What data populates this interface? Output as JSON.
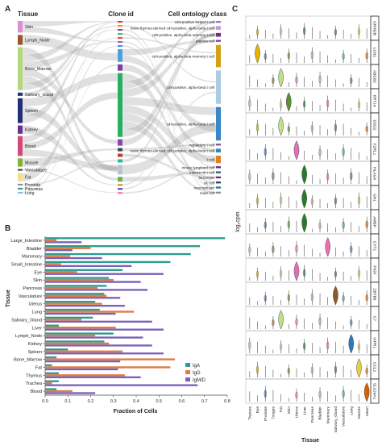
{
  "panels": [
    {
      "label": "A",
      "col_titles": [
        "Tissue",
        "Clone id",
        "Cell ontology class"
      ]
    },
    {
      "label": "B"
    },
    {
      "label": "C"
    }
  ],
  "chart_data": [
    {
      "type": "sankey",
      "panel": "A",
      "titles": [
        "Tissue",
        "Clone id",
        "Cell ontology class"
      ],
      "left_nodes": [
        {
          "name": "Skin",
          "color": "#d98fd6",
          "weight": 0.07
        },
        {
          "name": "Lymph_Node",
          "color": "#a0522d",
          "weight": 0.06
        },
        {
          "name": "Bone_Marrow",
          "color": "#b3d77a",
          "weight": 0.26
        },
        {
          "name": "Salivary_Gland",
          "color": "#2c2f80",
          "weight": 0.02
        },
        {
          "name": "Spleen",
          "color": "#1f2f7a",
          "weight": 0.15
        },
        {
          "name": "Kidney",
          "color": "#6b2f8c",
          "weight": 0.05
        },
        {
          "name": "Blood",
          "color": "#d1497a",
          "weight": 0.12
        },
        {
          "name": "Muscle",
          "color": "#7fb13c",
          "weight": 0.05
        },
        {
          "name": "Vasculature",
          "color": "#3f3f3f",
          "weight": 0.01
        },
        {
          "name": "Fat",
          "color": "#f1e08a",
          "weight": 0.05
        },
        {
          "name": "Prostate",
          "color": "#9a7fb6",
          "weight": 0.01
        },
        {
          "name": "Pancreas",
          "color": "#2a9d8f",
          "weight": 0.01
        },
        {
          "name": "Lung",
          "color": "#8fb8de",
          "weight": 0.01
        }
      ],
      "mid_nodes": [
        {
          "label": "",
          "color": "#e3342f",
          "weight": 0.01
        },
        {
          "label": "",
          "color": "#f28e2b",
          "weight": 0.01
        },
        {
          "label": "",
          "color": "#8e44ad",
          "weight": 0.01
        },
        {
          "label": "",
          "color": "#2ecc71",
          "weight": 0.01
        },
        {
          "label": "",
          "color": "#e74c3c",
          "weight": 0.01
        },
        {
          "label": "",
          "color": "#9b59b6",
          "weight": 0.01
        },
        {
          "label": "",
          "color": "#3498db",
          "weight": 0.01
        },
        {
          "label": "",
          "color": "#4aa3df",
          "weight": 0.08
        },
        {
          "label": "",
          "color": "#7b3fa0",
          "weight": 0.04
        },
        {
          "label": "",
          "color": "#27ae60",
          "weight": 0.4
        },
        {
          "label": "",
          "color": "#8e44ad",
          "weight": 0.04
        },
        {
          "label": "",
          "color": "#34495e",
          "weight": 0.02
        },
        {
          "label": "",
          "color": "#c0392b",
          "weight": 0.02
        },
        {
          "label": "",
          "color": "#1abc9c",
          "weight": 0.02
        },
        {
          "label": "",
          "color": "#bdc3c7",
          "weight": 0.06
        },
        {
          "label": "",
          "color": "#6ab04c",
          "weight": 0.03
        },
        {
          "label": "",
          "color": "#e67e22",
          "weight": 0.01
        },
        {
          "label": "",
          "color": "#3c40c6",
          "weight": 0.01
        },
        {
          "label": "",
          "color": "#ff6b81",
          "weight": 0.01
        }
      ],
      "right_nodes": [
        {
          "name": "cd4-positive helper t cell",
          "color": "#8e7cc3",
          "weight": 0.01
        },
        {
          "name": "naive thymus-derived cd4-positive, alpha-beta t cell",
          "color": "#c39bd3",
          "weight": 0.02
        },
        {
          "name": "cd8-positive, alpha-beta memory t cell",
          "color": "#6c3483",
          "weight": 0.02
        },
        {
          "name": "plasma cell",
          "color": "#7d3c98",
          "weight": 0.01
        },
        {
          "name": "cd4-positive, alpha-beta memory t cell",
          "color": "#d4a017",
          "weight": 0.12
        },
        {
          "name": "cd8-positive, alpha-beta t cell",
          "color": "#a9cce3",
          "weight": 0.18
        },
        {
          "name": "cd4-positive, alpha-beta t cell",
          "color": "#3a86c8",
          "weight": 0.18
        },
        {
          "name": "regulatory t cell",
          "color": "#884ea0",
          "weight": 0.01
        },
        {
          "name": "naive thymus-derived cd8-positive, alpha-beta t cell",
          "color": "#2e86c1",
          "weight": 0.02
        },
        {
          "name": "t cell",
          "color": "#e67e22",
          "weight": 0.04
        },
        {
          "name": "innate lymphoid cell",
          "color": "#5b2c6f",
          "weight": 0.01
        },
        {
          "name": "mature nk t cell",
          "color": "#1f618d",
          "weight": 0.01
        },
        {
          "name": "leucocyte",
          "color": "#5b2c6f",
          "weight": 0.01
        },
        {
          "name": "nk cell",
          "color": "#2e4053",
          "weight": 0.01
        },
        {
          "name": "macrophage",
          "color": "#2874a6",
          "weight": 0.01
        },
        {
          "name": "mast cell",
          "color": "#85929e",
          "weight": 0.01
        }
      ]
    },
    {
      "type": "bar",
      "panel": "B",
      "orientation": "horizontal",
      "xlabel": "Fraction of Cells",
      "ylabel": "Tissue",
      "xlim": [
        0,
        0.8
      ],
      "xticks": [
        0.0,
        0.1,
        0.2,
        0.3,
        0.4,
        0.5,
        0.6,
        0.7,
        0.8
      ],
      "legend_position": "bottom-right",
      "categories": [
        "Large_Intestine",
        "Bladder",
        "Mammary",
        "Small_Intestine",
        "Eye",
        "Skin",
        "Pancreas",
        "Vasculature",
        "Uterus",
        "Lung",
        "Salivary_Gland",
        "Liver",
        "Lymph_Node",
        "Kidney",
        "Spleen",
        "Bone_Marrow",
        "Fat",
        "Thymus",
        "Trachea",
        "Blood"
      ],
      "series": [
        {
          "name": "IgA",
          "color": "#2a9d8f",
          "values": [
            0.79,
            0.68,
            0.64,
            0.55,
            0.34,
            0.28,
            0.27,
            0.26,
            0.22,
            0.24,
            0.21,
            0.06,
            0.3,
            0.26,
            0.1,
            0.05,
            0.03,
            0.06,
            0.06,
            0.05
          ]
        },
        {
          "name": "IgG",
          "color": "#e07a3f",
          "values": [
            0.05,
            0.2,
            0.11,
            0.07,
            0.14,
            0.3,
            0.23,
            0.27,
            0.25,
            0.39,
            0.16,
            0.31,
            0.22,
            0.28,
            0.34,
            0.57,
            0.55,
            0.35,
            0.03,
            0.12
          ]
        },
        {
          "name": "IgM/D",
          "color": "#7b61b8",
          "values": [
            0.16,
            0.12,
            0.25,
            0.38,
            0.52,
            0.42,
            0.45,
            0.33,
            0.35,
            0.31,
            0.47,
            0.52,
            0.43,
            0.47,
            0.52,
            0.33,
            0.32,
            0.42,
            0.67,
            0.22
          ]
        }
      ]
    },
    {
      "type": "violin",
      "panel": "C",
      "xlabel": "Tissue",
      "ylabel": "log₂cpm",
      "tissues": [
        "Thymus",
        "Eye",
        "Prostate",
        "Tongue",
        "Fat",
        "Skin",
        "Uterus",
        "Liver",
        "Pancreas",
        "Bladder",
        "Mammary",
        "Salivary_Gland",
        "Vasculature",
        "Lung",
        "Muscle",
        "Heart"
      ],
      "tissue_colors": [
        "#c4b7e8",
        "#e0b400",
        "#2f6fb5",
        "#8a6d3b",
        "#bfe08a",
        "#5c8f37",
        "#e070b5",
        "#2a7a2a",
        "#d9a9a0",
        "#b0a8c8",
        "#e86fb0",
        "#8a5a2b",
        "#3ea8a0",
        "#2a7abf",
        "#e8cf4a",
        "#d95f02"
      ],
      "genes": [
        {
          "name": "GRIN2B",
          "highlight_tissue": ""
        },
        {
          "name": "LCN1",
          "highlight_tissue": "Eye"
        },
        {
          "name": "ABCB2",
          "highlight_tissue": "Fat"
        },
        {
          "name": "KRT14",
          "highlight_tissue": "Skin"
        },
        {
          "name": "DSG2",
          "highlight_tissue": "Fat"
        },
        {
          "name": "FZRL1",
          "highlight_tissue": "Uterus"
        },
        {
          "name": "HLAG4",
          "highlight_tissue": "Liver"
        },
        {
          "name": "GH1",
          "highlight_tissue": "Liver"
        },
        {
          "name": "AMBP",
          "highlight_tissue": "Liver"
        },
        {
          "name": "CYT1",
          "highlight_tissue": "Mammary"
        },
        {
          "name": "PIGF",
          "highlight_tissue": "Uterus"
        },
        {
          "name": "ZBTB8",
          "highlight_tissue": "Salivary_Gland"
        },
        {
          "name": "C7",
          "highlight_tissue": "Fat"
        },
        {
          "name": "VIPR1",
          "highlight_tissue": "Lung"
        },
        {
          "name": "CCL2",
          "highlight_tissue": "Muscle"
        },
        {
          "name": "SLC24A1",
          "highlight_tissue": "Heart"
        }
      ]
    }
  ]
}
